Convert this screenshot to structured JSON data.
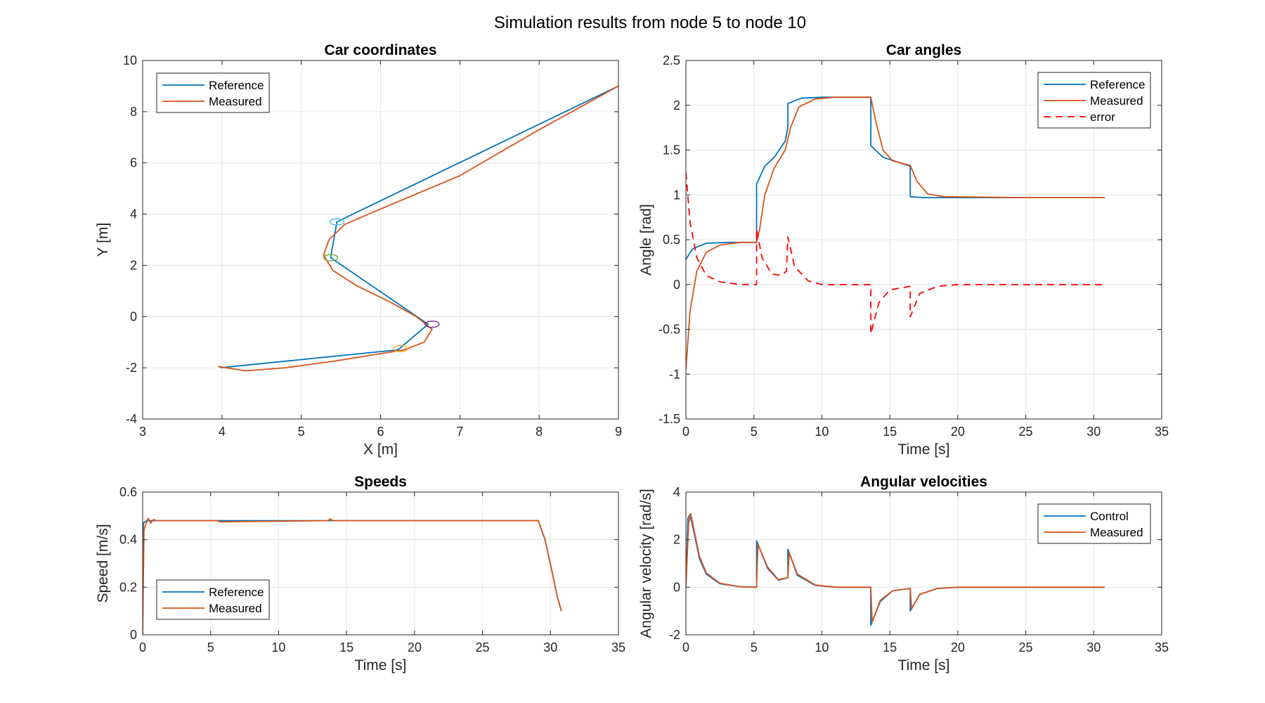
{
  "figure_title": "Simulation results from node 5 to node 10",
  "colors": {
    "reference": "#0072BD",
    "measured": "#D95319",
    "error": "#FF0000",
    "grid": "#e6e6e6",
    "axes": "#262626"
  },
  "chart_data": [
    {
      "id": "coords",
      "type": "line",
      "title": "Car coordinates",
      "xlabel": "X [m]",
      "ylabel": "Y [m]",
      "xlim": [
        3,
        9
      ],
      "ylim": [
        -4,
        10
      ],
      "xticks": [
        3,
        4,
        5,
        6,
        7,
        8,
        9
      ],
      "yticks": [
        -4,
        -2,
        0,
        2,
        4,
        6,
        8,
        10
      ],
      "grid": true,
      "legend": "top-left",
      "series": [
        {
          "name": "Reference",
          "color": "#0072BD",
          "dash": "",
          "x": [
            3.98,
            6.22,
            6.6,
            5.37,
            5.45,
            9.0
          ],
          "y": [
            -2.0,
            -1.3,
            -0.3,
            2.3,
            3.7,
            9.0
          ]
        },
        {
          "name": "Measured",
          "color": "#D95319",
          "dash": "",
          "x": [
            3.95,
            4.3,
            4.8,
            5.4,
            5.9,
            6.3,
            6.55,
            6.65,
            6.45,
            6.1,
            5.7,
            5.4,
            5.28,
            5.35,
            5.55,
            6.0,
            7.0,
            8.0,
            9.0
          ],
          "y": [
            -1.95,
            -2.12,
            -2.0,
            -1.75,
            -1.5,
            -1.3,
            -1.0,
            -0.5,
            0.0,
            0.6,
            1.2,
            1.8,
            2.4,
            3.0,
            3.6,
            4.2,
            5.5,
            7.3,
            9.0
          ]
        }
      ],
      "markers": [
        {
          "x": 6.25,
          "y": -1.25,
          "color": "#EDB120"
        },
        {
          "x": 6.65,
          "y": -0.3,
          "color": "#7E2F8E"
        },
        {
          "x": 5.37,
          "y": 2.3,
          "color": "#77AC30"
        },
        {
          "x": 5.45,
          "y": 3.7,
          "color": "#4DBEEE"
        }
      ]
    },
    {
      "id": "angles",
      "type": "line",
      "title": "Car angles",
      "xlabel": "Time [s]",
      "ylabel": "Angle [rad]",
      "xlim": [
        0,
        35
      ],
      "ylim": [
        -1.5,
        2.5
      ],
      "xticks": [
        0,
        5,
        10,
        15,
        20,
        25,
        30,
        35
      ],
      "yticks": [
        -1.5,
        -1,
        -0.5,
        0,
        0.5,
        1,
        1.5,
        2,
        2.5
      ],
      "grid": true,
      "legend": "top-right",
      "series": [
        {
          "name": "Reference",
          "color": "#0072BD",
          "dash": "",
          "x": [
            0,
            0.5,
            1.5,
            3,
            5.2,
            5.2,
            5.8,
            6.5,
            7.3,
            7.5,
            7.5,
            8.5,
            10,
            13.6,
            13.6,
            14.5,
            16.5,
            16.5,
            17.5,
            20,
            25,
            30.8
          ],
          "y": [
            0.28,
            0.4,
            0.46,
            0.47,
            0.47,
            1.12,
            1.32,
            1.42,
            1.6,
            1.75,
            2.02,
            2.08,
            2.09,
            2.09,
            1.55,
            1.42,
            1.32,
            0.98,
            0.97,
            0.97,
            0.97,
            0.97
          ]
        },
        {
          "name": "Measured",
          "color": "#D95319",
          "dash": "",
          "x": [
            0,
            0.3,
            0.8,
            1.5,
            2.5,
            4,
            5.2,
            5.4,
            5.8,
            6.5,
            7.3,
            7.7,
            8.3,
            9.5,
            11,
            13.6,
            14.0,
            14.5,
            15.2,
            16.5,
            17.0,
            17.8,
            19,
            25,
            30.8
          ],
          "y": [
            -0.95,
            -0.3,
            0.15,
            0.36,
            0.44,
            0.47,
            0.47,
            0.6,
            1.0,
            1.3,
            1.5,
            1.75,
            1.98,
            2.07,
            2.09,
            2.09,
            1.8,
            1.5,
            1.38,
            1.33,
            1.15,
            1.01,
            0.98,
            0.97,
            0.97
          ]
        },
        {
          "name": "error",
          "color": "#FF0000",
          "dash": "10,7",
          "x": [
            0,
            0.3,
            0.8,
            1.5,
            2.5,
            4,
            5.2,
            5.2,
            5.6,
            6.3,
            7.0,
            7.4,
            7.5,
            8.0,
            9.0,
            10,
            13.6,
            13.6,
            14.2,
            15.0,
            16.5,
            16.5,
            17.2,
            18.5,
            20,
            25,
            30.8
          ],
          "y": [
            1.25,
            0.7,
            0.3,
            0.1,
            0.03,
            0.0,
            0.0,
            0.62,
            0.3,
            0.12,
            0.1,
            0.15,
            0.53,
            0.2,
            0.04,
            0.0,
            0.0,
            -0.55,
            -0.2,
            -0.06,
            -0.02,
            -0.36,
            -0.1,
            -0.02,
            0.0,
            0.0,
            0.0
          ]
        }
      ]
    },
    {
      "id": "speeds",
      "type": "line",
      "title": "Speeds",
      "xlabel": "Time [s]",
      "ylabel": "Speed [m/s]",
      "xlim": [
        0,
        35
      ],
      "ylim": [
        0,
        0.6
      ],
      "xticks": [
        0,
        5,
        10,
        15,
        20,
        25,
        30,
        35
      ],
      "yticks": [
        0,
        0.2,
        0.4,
        0.6
      ],
      "grid": true,
      "legend": "bottom-left",
      "series": [
        {
          "name": "Reference",
          "color": "#0072BD",
          "dash": "",
          "x": [
            0,
            0.05,
            0.3,
            29.1,
            29.6,
            30.1,
            30.5,
            30.8
          ],
          "y": [
            0,
            0.47,
            0.48,
            0.48,
            0.4,
            0.27,
            0.16,
            0.1
          ]
        },
        {
          "name": "Measured",
          "color": "#D95319",
          "dash": "",
          "x": [
            0,
            0.1,
            0.2,
            0.4,
            0.6,
            0.8,
            1.0,
            5.5,
            5.7,
            13.6,
            13.8,
            14.0,
            29.1,
            29.6,
            30.1,
            30.5,
            30.8
          ],
          "y": [
            0,
            0.44,
            0.46,
            0.49,
            0.47,
            0.485,
            0.48,
            0.48,
            0.475,
            0.48,
            0.487,
            0.48,
            0.48,
            0.4,
            0.27,
            0.16,
            0.1
          ]
        }
      ]
    },
    {
      "id": "angvel",
      "type": "line",
      "title": "Angular velocities",
      "xlabel": "Time [s]",
      "ylabel": "Angular velocity [rad/s]",
      "xlim": [
        0,
        35
      ],
      "ylim": [
        -2,
        4
      ],
      "xticks": [
        0,
        5,
        10,
        15,
        20,
        25,
        30,
        35
      ],
      "yticks": [
        -2,
        0,
        2,
        4
      ],
      "grid": true,
      "legend": "top-right",
      "series": [
        {
          "name": "Control",
          "color": "#0072BD",
          "dash": "",
          "x": [
            0,
            0.15,
            0.3,
            0.6,
            1.0,
            1.5,
            2.5,
            4,
            5.2,
            5.2,
            6.0,
            6.8,
            7.5,
            7.5,
            8.2,
            9.5,
            11,
            13.6,
            13.6,
            14.3,
            15.2,
            16.5,
            16.5,
            17.2,
            18.5,
            20,
            25,
            30.8
          ],
          "y": [
            0,
            2.9,
            3.05,
            2.3,
            1.2,
            0.55,
            0.15,
            0.02,
            0.0,
            1.95,
            0.8,
            0.3,
            0.4,
            1.6,
            0.5,
            0.08,
            0.0,
            0.0,
            -1.6,
            -0.6,
            -0.15,
            -0.05,
            -1.0,
            -0.3,
            -0.05,
            0.0,
            0.0,
            0.0
          ]
        },
        {
          "name": "Measured",
          "color": "#D95319",
          "dash": "",
          "x": [
            0,
            0.2,
            0.35,
            0.6,
            1.0,
            1.5,
            2.5,
            4,
            5.2,
            5.3,
            6.0,
            6.8,
            7.5,
            7.6,
            8.2,
            9.5,
            11,
            13.6,
            13.7,
            14.3,
            15.2,
            16.5,
            16.6,
            17.2,
            18.5,
            20,
            25,
            30.8
          ],
          "y": [
            0,
            2.7,
            3.1,
            2.4,
            1.3,
            0.6,
            0.17,
            0.02,
            0.0,
            1.8,
            0.85,
            0.32,
            0.4,
            1.45,
            0.55,
            0.1,
            0.0,
            0.0,
            -1.45,
            -0.55,
            -0.15,
            -0.05,
            -0.9,
            -0.3,
            -0.05,
            0.0,
            0.0,
            0.0
          ]
        }
      ]
    }
  ]
}
